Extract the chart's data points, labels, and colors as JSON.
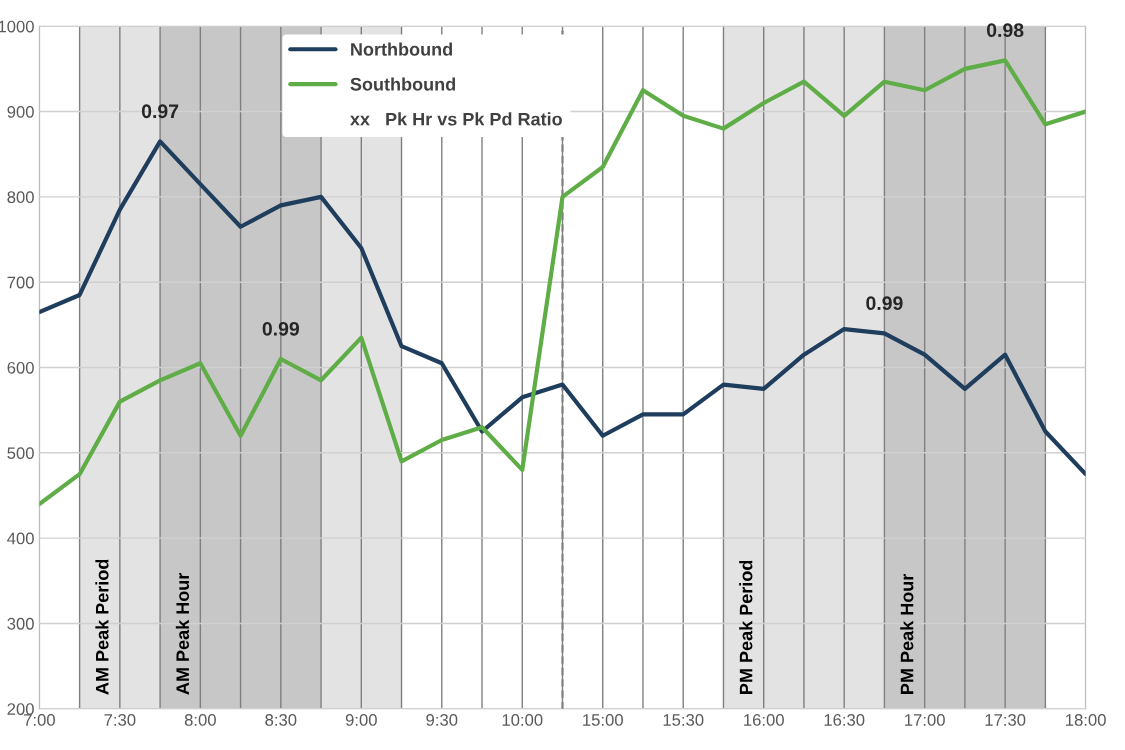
{
  "chart_data": {
    "type": "line",
    "categories": [
      "7:00",
      null,
      "7:30",
      null,
      "8:00",
      null,
      "8:30",
      null,
      "9:00",
      null,
      "9:30",
      null,
      "10:00",
      null,
      "15:00",
      null,
      "15:30",
      null,
      "16:00",
      null,
      "16:30",
      null,
      "17:00",
      null,
      "17:30",
      null,
      "18:00"
    ],
    "series": [
      {
        "name": "Northbound",
        "color": "#1f3d5c",
        "values": [
          665,
          685,
          785,
          865,
          815,
          765,
          790,
          800,
          740,
          625,
          605,
          525,
          565,
          580,
          520,
          545,
          545,
          580,
          575,
          615,
          645,
          640,
          615,
          575,
          615,
          525,
          475
        ]
      },
      {
        "name": "Southbound",
        "color": "#5fad46",
        "values": [
          440,
          475,
          560,
          585,
          605,
          520,
          610,
          585,
          635,
          490,
          515,
          530,
          480,
          800,
          835,
          925,
          895,
          880,
          910,
          935,
          895,
          935,
          925,
          950,
          960,
          885,
          900
        ]
      }
    ],
    "ylim": [
      200,
      1000
    ],
    "yticks": [
      200,
      300,
      400,
      500,
      600,
      700,
      800,
      900,
      1000
    ],
    "grid": true,
    "legend": "top",
    "marker": "none",
    "line_style": "solid",
    "annotations": [
      "AM Peak Period",
      "AM Peak Hour",
      "PM Peak Period",
      "PM Peak Hour",
      {
        "text": "0.97",
        "y": 865
      },
      {
        "text": "0.99",
        "y": 610
      },
      {
        "text": "0.99",
        "y": 640
      },
      {
        "text": "0.98",
        "y": 960
      },
      "xx   Pk Hr vs Pk Pd Ratio"
    ]
  }
}
